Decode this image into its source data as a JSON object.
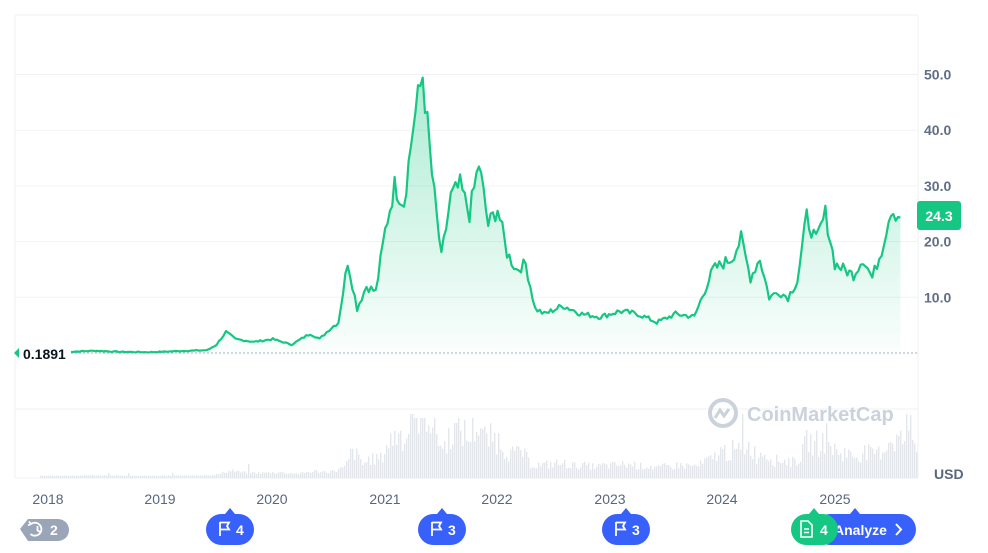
{
  "colors": {
    "line": "#16c784",
    "event_blue": "#3861fb",
    "event_gray": "#9aa5b8",
    "event_green": "#16c784",
    "grid": "#eff2f5",
    "volume": "#e3e6eb"
  },
  "chart_data": {
    "type": "area",
    "ylim": [
      0,
      60
    ],
    "yticks": [
      10,
      20,
      30,
      40,
      50
    ],
    "ytick_labels": [
      "10.0",
      "20.0",
      "30.0",
      "40.0",
      "50.0"
    ],
    "x_years": [
      "2018",
      "2019",
      "2020",
      "2021",
      "2022",
      "2023",
      "2024",
      "2025"
    ],
    "unit_label": "USD",
    "start_value_label": "0.1891",
    "current_price_label": "24.3",
    "grid": true,
    "series": [
      {
        "values": [
          [
            "2018-03",
            0.2
          ],
          [
            "2018-06",
            0.4
          ],
          [
            "2018-09",
            0.2
          ],
          [
            "2018-12",
            0.15
          ],
          [
            "2019-03",
            0.35
          ],
          [
            "2019-06",
            0.5
          ],
          [
            "2019-07",
            1.5
          ],
          [
            "2019-08",
            3.8
          ],
          [
            "2019-09",
            2.5
          ],
          [
            "2019-11",
            2.0
          ],
          [
            "2020-01",
            2.5
          ],
          [
            "2020-03",
            1.5
          ],
          [
            "2020-05",
            3.5
          ],
          [
            "2020-06",
            2.5
          ],
          [
            "2020-07",
            4.2
          ],
          [
            "2020-08",
            5.5
          ],
          [
            "2020-09",
            16.5
          ],
          [
            "2020-10",
            8.0
          ],
          [
            "2020-11",
            12.0
          ],
          [
            "2020-12",
            11.0
          ],
          [
            "2021-01",
            22.0
          ],
          [
            "2021-02",
            30.0
          ],
          [
            "2021-03",
            27.0
          ],
          [
            "2021-04",
            41.0
          ],
          [
            "2021-05",
            50.0
          ],
          [
            "2021-06",
            32.0
          ],
          [
            "2021-07",
            17.0
          ],
          [
            "2021-08",
            28.0
          ],
          [
            "2021-09",
            30.0
          ],
          [
            "2021-10",
            25.0
          ],
          [
            "2021-11",
            34.0
          ],
          [
            "2021-12",
            23.0
          ],
          [
            "2022-01",
            26.0
          ],
          [
            "2022-02",
            18.0
          ],
          [
            "2022-03",
            15.0
          ],
          [
            "2022-04",
            16.0
          ],
          [
            "2022-05",
            8.0
          ],
          [
            "2022-06",
            7.0
          ],
          [
            "2022-08",
            8.5
          ],
          [
            "2022-10",
            7.0
          ],
          [
            "2022-12",
            6.5
          ],
          [
            "2023-02",
            7.5
          ],
          [
            "2023-04",
            7.0
          ],
          [
            "2023-06",
            5.5
          ],
          [
            "2023-08",
            7.0
          ],
          [
            "2023-10",
            6.5
          ],
          [
            "2023-12",
            15.0
          ],
          [
            "2024-02",
            17.0
          ],
          [
            "2024-03",
            20.5
          ],
          [
            "2024-04",
            13.5
          ],
          [
            "2024-05",
            17.0
          ],
          [
            "2024-06",
            10.0
          ],
          [
            "2024-07",
            11.0
          ],
          [
            "2024-08",
            10.0
          ],
          [
            "2024-09",
            13.0
          ],
          [
            "2024-10",
            24.5
          ],
          [
            "2024-11",
            20.0
          ],
          [
            "2024-12",
            25.0
          ],
          [
            "2025-01",
            16.0
          ],
          [
            "2025-03",
            14.0
          ],
          [
            "2025-04",
            17.0
          ],
          [
            "2025-05",
            13.5
          ],
          [
            "2025-06",
            18.5
          ],
          [
            "2025-07",
            26.0
          ],
          [
            "2025-08",
            24.3
          ]
        ]
      }
    ]
  },
  "watermark": "CoinMarketCap",
  "events": [
    {
      "kind": "history",
      "icon": "history-icon",
      "count": "2"
    },
    {
      "kind": "flag",
      "icon": "flag-icon",
      "count": "4"
    },
    {
      "kind": "flag",
      "icon": "flag-icon",
      "count": "3"
    },
    {
      "kind": "flag",
      "icon": "flag-icon",
      "count": "3"
    },
    {
      "kind": "doc",
      "icon": "document-icon",
      "count": "4"
    }
  ],
  "analyze_button": {
    "label": "Analyze",
    "icon": "chevron-right-icon"
  }
}
